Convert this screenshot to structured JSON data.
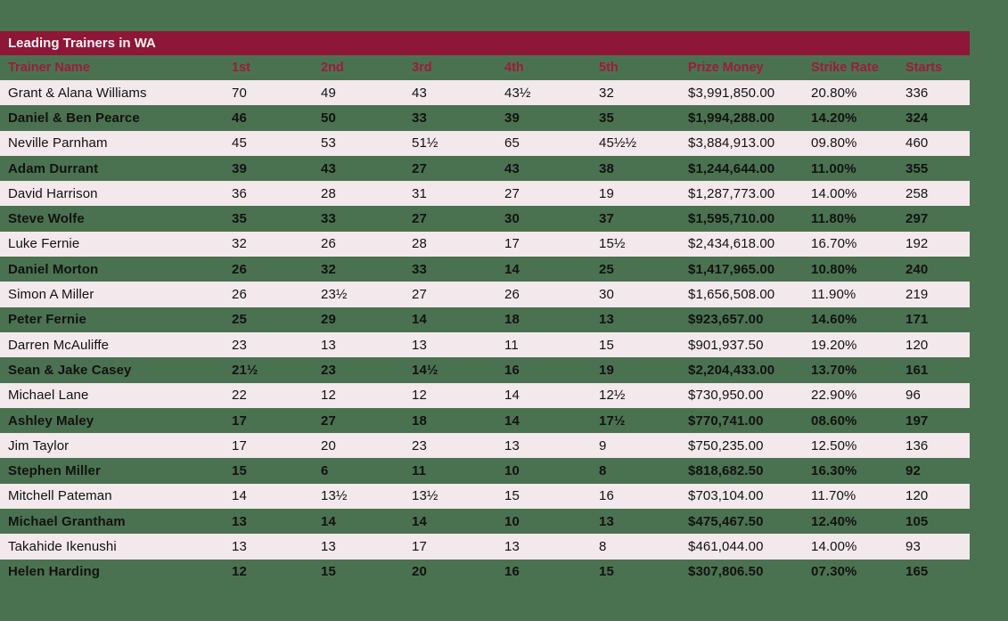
{
  "title": "Leading Trainers in WA",
  "table": {
    "columns": [
      "Trainer Name",
      "1st",
      "2nd",
      "3rd",
      "4th",
      "5th",
      "Prize Money",
      "Strike Rate",
      "Starts"
    ],
    "rows": [
      [
        "Grant & Alana Williams",
        "70",
        "49",
        "43",
        "43½",
        "32",
        "$3,991,850.00",
        "20.80%",
        "336"
      ],
      [
        "Daniel & Ben Pearce",
        "46",
        "50",
        "33",
        "39",
        "35",
        "$1,994,288.00",
        "14.20%",
        "324"
      ],
      [
        "Neville Parnham",
        "45",
        "53",
        "51½",
        "65",
        "45½½",
        "$3,884,913.00",
        "09.80%",
        "460"
      ],
      [
        "Adam Durrant",
        "39",
        "43",
        "27",
        "43",
        "38",
        "$1,244,644.00",
        "11.00%",
        "355"
      ],
      [
        "David Harrison",
        "36",
        "28",
        "31",
        "27",
        "19",
        "$1,287,773.00",
        "14.00%",
        "258"
      ],
      [
        "Steve Wolfe",
        "35",
        "33",
        "27",
        "30",
        "37",
        "$1,595,710.00",
        "11.80%",
        "297"
      ],
      [
        "Luke Fernie",
        "32",
        "26",
        "28",
        "17",
        "15½",
        "$2,434,618.00",
        "16.70%",
        "192"
      ],
      [
        "Daniel Morton",
        "26",
        "32",
        "33",
        "14",
        "25",
        "$1,417,965.00",
        "10.80%",
        "240"
      ],
      [
        "Simon A Miller",
        "26",
        "23½",
        "27",
        "26",
        "30",
        "$1,656,508.00",
        "11.90%",
        "219"
      ],
      [
        "Peter Fernie",
        "25",
        "29",
        "14",
        "18",
        "13",
        "$923,657.00",
        "14.60%",
        "171"
      ],
      [
        "Darren McAuliffe",
        "23",
        "13",
        "13",
        "11",
        "15",
        "$901,937.50",
        "19.20%",
        "120"
      ],
      [
        "Sean & Jake Casey",
        "21½",
        "23",
        "14½",
        "16",
        "19",
        "$2,204,433.00",
        "13.70%",
        "161"
      ],
      [
        "Michael Lane",
        "22",
        "12",
        "12",
        "14",
        "12½",
        "$730,950.00",
        "22.90%",
        "96"
      ],
      [
        "Ashley Maley",
        "17",
        "27",
        "18",
        "14",
        "17½",
        "$770,741.00",
        "08.60%",
        "197"
      ],
      [
        "Jim Taylor",
        "17",
        "20",
        "23",
        "13",
        "9",
        "$750,235.00",
        "12.50%",
        "136"
      ],
      [
        "Stephen Miller",
        "15",
        "6",
        "11",
        "10",
        "8",
        "$818,682.50",
        "16.30%",
        "92"
      ],
      [
        "Mitchell Pateman",
        "14",
        "13½",
        "13½",
        "15",
        "16",
        "$703,104.00",
        "11.70%",
        "120"
      ],
      [
        "Michael Grantham",
        "13",
        "14",
        "14",
        "10",
        "13",
        "$475,467.50",
        "12.40%",
        "105"
      ],
      [
        "Takahide Ikenushi",
        "13",
        "13",
        "17",
        "13",
        "8",
        "$461,044.00",
        "14.00%",
        "93"
      ],
      [
        "Helen Harding",
        "12",
        "15",
        "20",
        "16",
        "15",
        "$307,806.50",
        "07.30%",
        "165"
      ]
    ]
  },
  "colors": {
    "background_green": "#4B7250",
    "title_bar_maroon": "#8E1638",
    "header_text_crimson": "#9C1C3E",
    "row_pink": "#F3E8EC",
    "data_text": "#121212",
    "title_text": "#FAF3F6"
  }
}
